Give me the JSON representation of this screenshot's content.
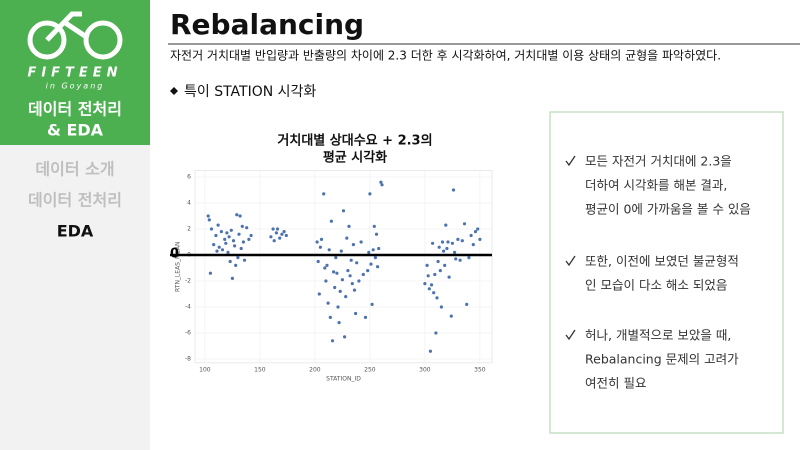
{
  "sidebar": {
    "brand": "FIFTEEN",
    "brand_sub": "in Goyang",
    "section": [
      "데이터 전처리",
      "& EDA"
    ],
    "nav": [
      "데이터 소개",
      "데이터 전처리",
      "EDA"
    ]
  },
  "header": {
    "title": "Rebalancing",
    "description": "자전거 거치대별 반입량과 반출량의 차이에 2.3 더한 후 시각화하여, 거치대별 이용 상태의 균형을 파악하였다."
  },
  "subheading": "특이 STATION 시각화",
  "chart_data": {
    "type": "scatter",
    "title": [
      "거치대별 상대수요 + 2.3의",
      "평균 시각화"
    ],
    "xlabel": "STATION_ID",
    "ylabel": "RTN_LEAS_MEAN",
    "color": "#4c72b0",
    "grid": true,
    "xlim": [
      91,
      361
    ],
    "ylim": [
      -8.3,
      6.5
    ],
    "xticks": [
      100,
      150,
      200,
      250,
      300,
      350
    ],
    "yticks": [
      -8,
      -6,
      -4,
      -2,
      0,
      2,
      4,
      6
    ],
    "hline": {
      "value": 0,
      "label": "0"
    },
    "x": [
      103,
      104,
      105,
      106,
      108,
      110,
      111,
      112,
      113,
      115,
      116,
      118,
      119,
      120,
      121,
      122,
      123,
      124,
      125,
      126,
      127,
      128,
      129,
      130,
      131,
      132,
      133,
      134,
      135,
      136,
      138,
      140,
      142,
      160,
      162,
      163,
      165,
      166,
      168,
      170,
      172,
      174,
      202,
      203,
      204,
      205,
      206,
      208,
      209,
      210,
      211,
      212,
      213,
      214,
      215,
      216,
      217,
      218,
      219,
      220,
      221,
      222,
      223,
      224,
      225,
      226,
      227,
      228,
      229,
      230,
      231,
      232,
      233,
      234,
      235,
      236,
      237,
      238,
      240,
      242,
      244,
      246,
      248,
      249,
      250,
      251,
      252,
      253,
      254,
      255,
      256,
      257,
      258,
      260,
      261,
      300,
      302,
      303,
      304,
      305,
      306,
      307,
      308,
      309,
      310,
      311,
      312,
      313,
      314,
      315,
      316,
      317,
      318,
      319,
      320,
      321,
      322,
      324,
      325,
      326,
      327,
      328,
      330,
      332,
      334,
      336,
      338,
      340,
      342,
      344,
      346,
      348,
      350
    ],
    "values": [
      3.0,
      2.7,
      -1.4,
      2.0,
      0.8,
      1.5,
      0.3,
      2.3,
      0.6,
      1.8,
      0.4,
      1.2,
      0.9,
      1.7,
      0.2,
      1.4,
      -0.5,
      1.9,
      -1.8,
      1.1,
      0.7,
      -0.8,
      3.1,
      -0.2,
      1.6,
      3.0,
      0.5,
      2.2,
      1.0,
      -0.4,
      2.1,
      1.2,
      1.5,
      1.4,
      2.0,
      1.1,
      1.7,
      2.0,
      1.3,
      1.6,
      1.8,
      1.5,
      1.0,
      -0.5,
      -3.0,
      0.6,
      1.2,
      4.7,
      -1.0,
      -2.0,
      -0.8,
      -3.7,
      0.4,
      -4.8,
      2.6,
      -6.6,
      -1.3,
      -2.5,
      -0.2,
      -1.4,
      -4.0,
      -5.2,
      -2.8,
      0.3,
      -1.9,
      3.4,
      -6.3,
      -3.2,
      1.3,
      -1.2,
      2.2,
      -1.6,
      -0.4,
      -2.2,
      0.8,
      -2.7,
      -4.5,
      -0.6,
      -2.0,
      1.0,
      -1.5,
      -4.8,
      -1.2,
      0.2,
      4.7,
      -0.7,
      -3.8,
      0.4,
      2.2,
      -0.2,
      1.6,
      -0.9,
      0.5,
      5.6,
      5.4,
      -2.2,
      -0.8,
      -1.6,
      -2.6,
      -7.4,
      -2.3,
      0.9,
      -2.9,
      -1.5,
      -6.0,
      -3.3,
      -0.5,
      0.6,
      -1.2,
      -4.0,
      1.0,
      0.3,
      -0.8,
      2.3,
      0.5,
      1.0,
      -1.7,
      -4.7,
      0.9,
      5.0,
      0.2,
      -0.3,
      1.2,
      -0.4,
      1.1,
      2.4,
      -3.8,
      -0.2,
      1.5,
      0.8,
      1.8,
      2.0,
      1.2
    ]
  },
  "notes": [
    [
      "모든 자전거 거치대에 2.3을",
      "더하여 시각화를 해본 결과,",
      "평균이 0에 가까움을 볼 수 있음"
    ],
    [
      "또한, 이전에 보였던 불균형적",
      "인 모습이 다소 해소 되었음"
    ],
    [
      "허나, 개별적으로 보았을 때,",
      "Rebalancing 문제의 고려가",
      "여전히 필요"
    ]
  ]
}
